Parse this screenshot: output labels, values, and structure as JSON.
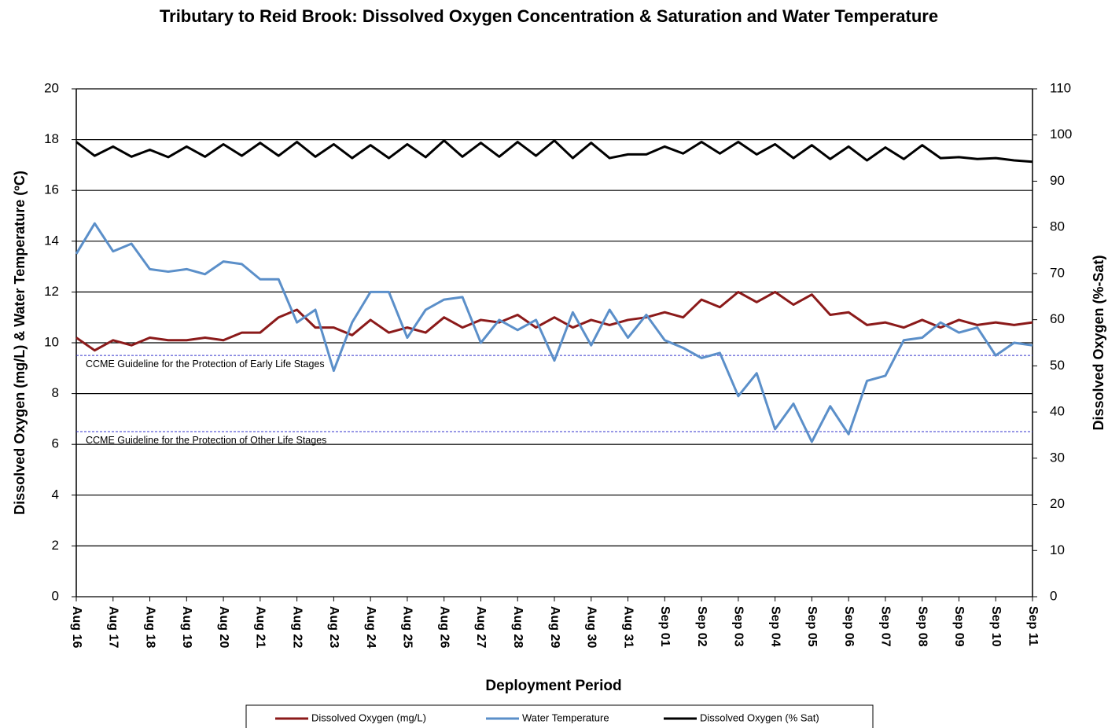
{
  "chart_data": {
    "type": "line",
    "title": "Tributary to Reid Brook: Dissolved Oxygen Concentration & Saturation and Water Temperature",
    "x_label": "Deployment Period",
    "y_label": "Dissolved  Oxygen (mg/L) & Water Temperature (ºC)",
    "y2_label": "Dissolved  Oxygen (%-Sat)",
    "xlim": [
      0,
      26
    ],
    "xticks": [
      {
        "value": 0,
        "label": "Aug 16"
      },
      {
        "value": 1,
        "label": "Aug 17"
      },
      {
        "value": 2,
        "label": "Aug 18"
      },
      {
        "value": 3,
        "label": "Aug 19"
      },
      {
        "value": 4,
        "label": "Aug 20"
      },
      {
        "value": 5,
        "label": "Aug 21"
      },
      {
        "value": 6,
        "label": "Aug 22"
      },
      {
        "value": 7,
        "label": "Aug 23"
      },
      {
        "value": 8,
        "label": "Aug 24"
      },
      {
        "value": 9,
        "label": "Aug 25"
      },
      {
        "value": 10,
        "label": "Aug 26"
      },
      {
        "value": 11,
        "label": "Aug 27"
      },
      {
        "value": 12,
        "label": "Aug 28"
      },
      {
        "value": 13,
        "label": "Aug 29"
      },
      {
        "value": 14,
        "label": "Aug 30"
      },
      {
        "value": 15,
        "label": "Aug 31"
      },
      {
        "value": 16,
        "label": "Sep 01"
      },
      {
        "value": 17,
        "label": "Sep 02"
      },
      {
        "value": 18,
        "label": "Sep 03"
      },
      {
        "value": 19,
        "label": "Sep 04"
      },
      {
        "value": 20,
        "label": "Sep 05"
      },
      {
        "value": 21,
        "label": "Sep 06"
      },
      {
        "value": 22,
        "label": "Sep 07"
      },
      {
        "value": 23,
        "label": "Sep 08"
      },
      {
        "value": 24,
        "label": "Sep 09"
      },
      {
        "value": 25,
        "label": "Sep 10"
      },
      {
        "value": 26,
        "label": "Sep 11"
      }
    ],
    "ylim": [
      0,
      20
    ],
    "yticks": [
      0,
      2,
      4,
      6,
      8,
      10,
      12,
      14,
      16,
      18,
      20
    ],
    "y2lim": [
      0,
      110
    ],
    "y2ticks": [
      0,
      10,
      20,
      30,
      40,
      50,
      60,
      70,
      80,
      90,
      100,
      110
    ],
    "grid": true,
    "x": [
      0,
      0.5,
      1,
      1.5,
      2,
      2.5,
      3,
      3.5,
      4,
      4.5,
      5,
      5.5,
      6,
      6.5,
      7,
      7.5,
      8,
      8.5,
      9,
      9.5,
      10,
      10.5,
      11,
      11.5,
      12,
      12.5,
      13,
      13.5,
      14,
      14.5,
      15,
      15.5,
      16,
      16.5,
      17,
      17.5,
      18,
      18.5,
      19,
      19.5,
      20,
      20.5,
      21,
      21.5,
      22,
      22.5,
      23,
      23.5,
      24,
      24.5,
      25,
      25.5,
      26
    ],
    "series": [
      {
        "name": "Dissolved Oxygen (mg/L)",
        "color": "#8b1a1a",
        "values": [
          10.2,
          9.7,
          10.1,
          9.9,
          10.2,
          10.1,
          10.1,
          10.2,
          10.1,
          10.4,
          10.4,
          11.0,
          11.3,
          10.6,
          10.6,
          10.3,
          10.9,
          10.4,
          10.6,
          10.4,
          11.0,
          10.6,
          10.9,
          10.8,
          11.1,
          10.6,
          11.0,
          10.6,
          10.9,
          10.7,
          10.9,
          11.0,
          11.2,
          11.0,
          11.7,
          11.4,
          12.0,
          11.6,
          12.0,
          11.5,
          11.9,
          11.1,
          11.2,
          10.7,
          10.8,
          10.6,
          10.9,
          10.6,
          10.9,
          10.7,
          10.8,
          10.7,
          10.8
        ]
      },
      {
        "name": "Water Temperature",
        "color": "#5b8fc9",
        "values": [
          13.5,
          14.7,
          13.6,
          13.9,
          12.9,
          12.8,
          12.9,
          12.7,
          13.2,
          13.1,
          12.5,
          12.5,
          10.8,
          11.3,
          8.9,
          10.8,
          12.0,
          12.0,
          10.2,
          11.3,
          11.7,
          11.8,
          10.0,
          10.9,
          10.5,
          10.9,
          9.3,
          11.2,
          9.9,
          11.3,
          10.2,
          11.1,
          10.1,
          9.8,
          9.4,
          9.6,
          7.9,
          8.8,
          6.6,
          7.6,
          6.1,
          7.5,
          6.4,
          8.5,
          8.7,
          10.1,
          10.2,
          10.8,
          10.4,
          10.6,
          9.5,
          10.0,
          9.9
        ]
      },
      {
        "name": "Dissolved Oxygen (% Sat)",
        "color": "#000000",
        "axis": "y2",
        "values": [
          98.5,
          95.5,
          97.5,
          95.3,
          96.8,
          95.2,
          97.5,
          95.3,
          98,
          95.5,
          98.3,
          95.5,
          98.5,
          95.3,
          98,
          95,
          97.8,
          95,
          98,
          95.2,
          98.8,
          95.3,
          98.3,
          95.3,
          98.5,
          95.5,
          98.8,
          95,
          98.3,
          95,
          95.8,
          95.8,
          97.5,
          96,
          98.5,
          96,
          98.5,
          95.8,
          98,
          95,
          97.8,
          94.8,
          97.5,
          94.5,
          97.3,
          94.8,
          97.8,
          95,
          95.2,
          94.8,
          95,
          94.5,
          94.2
        ]
      }
    ],
    "reference_lines": [
      {
        "value": 9.5,
        "label": "CCME Guideline  for the Protection of Early Life Stages",
        "color": "#3333cc"
      },
      {
        "value": 6.5,
        "label": "CCME Guideline  for the Protection of Other Life Stages",
        "color": "#3333cc"
      }
    ]
  }
}
